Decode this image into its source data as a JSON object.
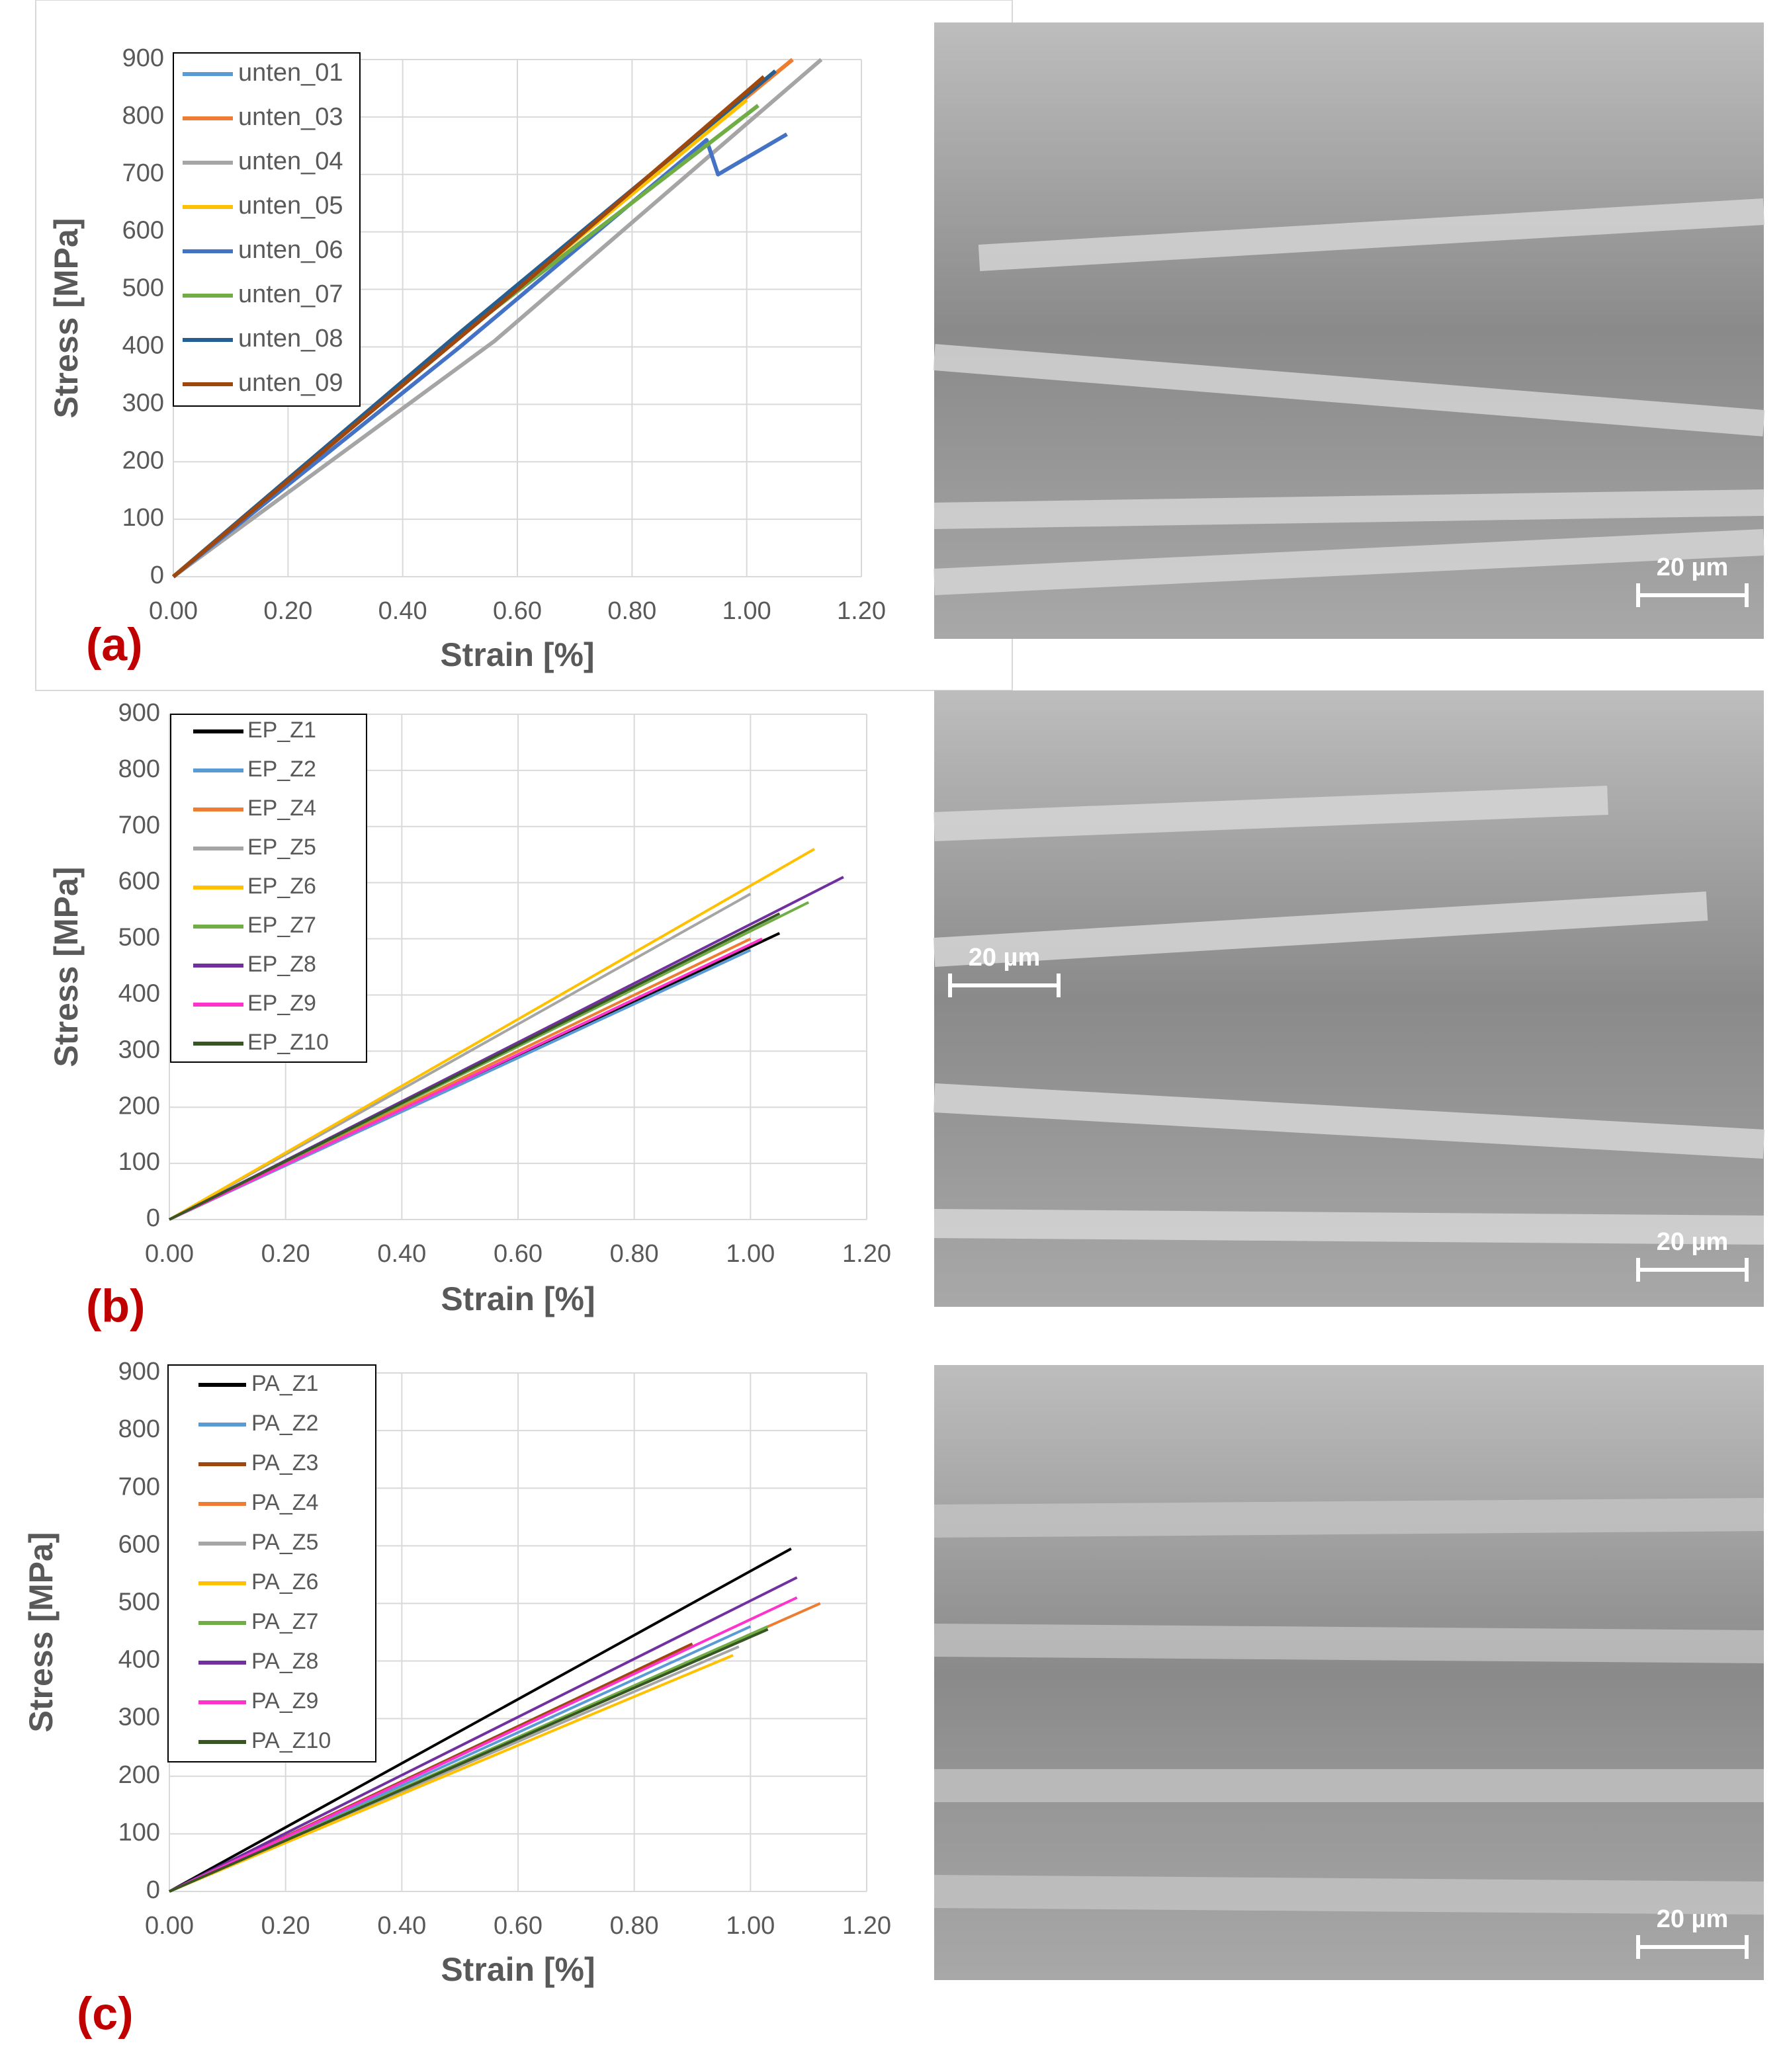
{
  "chart_data": [
    {
      "type": "line",
      "panel_label": "(a)",
      "x_label": "Strain [%]",
      "y_label": "Stress [MPa]",
      "xlim": [
        0,
        1.2
      ],
      "ylim": [
        0,
        900
      ],
      "xticks": [
        {
          "value": 0,
          "label": "0.00"
        },
        {
          "value": 0.2,
          "label": "0.20"
        },
        {
          "value": 0.4,
          "label": "0.40"
        },
        {
          "value": 0.6,
          "label": "0.60"
        },
        {
          "value": 0.8,
          "label": "0.80"
        },
        {
          "value": 1.0,
          "label": "1.00"
        },
        {
          "value": 1.2,
          "label": "1.20"
        }
      ],
      "yticks": [
        0,
        100,
        200,
        300,
        400,
        500,
        600,
        700,
        800,
        900
      ],
      "grid": true,
      "series": [
        {
          "name": "unten_01",
          "color": "#5b9bd5",
          "x": [
            0,
            0.5,
            1.05
          ],
          "values": [
            0,
            420,
            880
          ]
        },
        {
          "name": "unten_03",
          "color": "#ed7d31",
          "x": [
            0,
            0.5,
            1.08
          ],
          "values": [
            0,
            425,
            900
          ]
        },
        {
          "name": "unten_04",
          "color": "#a5a5a5",
          "x": [
            0,
            0.56,
            1.13
          ],
          "values": [
            0,
            410,
            900
          ]
        },
        {
          "name": "unten_05",
          "color": "#ffc000",
          "x": [
            0,
            0.5,
            1.0
          ],
          "values": [
            0,
            420,
            830
          ]
        },
        {
          "name": "unten_06",
          "color": "#4472c4",
          "x": [
            0,
            0.5,
            0.93,
            0.95,
            1.07
          ],
          "values": [
            0,
            400,
            760,
            700,
            770
          ]
        },
        {
          "name": "unten_07",
          "color": "#70ad47",
          "x": [
            0,
            0.5,
            1.02
          ],
          "values": [
            0,
            420,
            820
          ]
        },
        {
          "name": "unten_08",
          "color": "#255e91",
          "x": [
            0,
            0.5,
            1.05
          ],
          "values": [
            0,
            425,
            880
          ]
        },
        {
          "name": "unten_09",
          "color": "#9e480e",
          "x": [
            0,
            0.6,
            1.03
          ],
          "values": [
            0,
            500,
            870
          ]
        }
      ]
    },
    {
      "type": "line",
      "panel_label": "(b)",
      "x_label": "Strain [%]",
      "y_label": "Stress [MPa]",
      "xlim": [
        0,
        1.2
      ],
      "ylim": [
        0,
        900
      ],
      "xticks": [
        {
          "value": 0,
          "label": "0.00"
        },
        {
          "value": 0.2,
          "label": "0.20"
        },
        {
          "value": 0.4,
          "label": "0.40"
        },
        {
          "value": 0.6,
          "label": "0.60"
        },
        {
          "value": 0.8,
          "label": "0.80"
        },
        {
          "value": 1.0,
          "label": "1.00"
        },
        {
          "value": 1.2,
          "label": "1.20"
        }
      ],
      "yticks": [
        0,
        100,
        200,
        300,
        400,
        500,
        600,
        700,
        800,
        900
      ],
      "grid": true,
      "series": [
        {
          "name": "EP_Z1",
          "color": "#000000",
          "x": [
            0,
            1.05
          ],
          "values": [
            0,
            510
          ]
        },
        {
          "name": "EP_Z2",
          "color": "#5b9bd5",
          "x": [
            0,
            1.0
          ],
          "values": [
            0,
            480
          ]
        },
        {
          "name": "EP_Z4",
          "color": "#ed7d31",
          "x": [
            0,
            1.0
          ],
          "values": [
            0,
            500
          ]
        },
        {
          "name": "EP_Z5",
          "color": "#a5a5a5",
          "x": [
            0,
            1.0
          ],
          "values": [
            0,
            580
          ]
        },
        {
          "name": "EP_Z6",
          "color": "#ffc000",
          "x": [
            0,
            1.11
          ],
          "values": [
            0,
            660
          ]
        },
        {
          "name": "EP_Z7",
          "color": "#70ad47",
          "x": [
            0,
            1.1
          ],
          "values": [
            0,
            565
          ]
        },
        {
          "name": "EP_Z8",
          "color": "#7030a0",
          "x": [
            0,
            1.16
          ],
          "values": [
            0,
            610
          ]
        },
        {
          "name": "EP_Z9",
          "color": "#ff33cc",
          "x": [
            0,
            1.02
          ],
          "values": [
            0,
            500
          ]
        },
        {
          "name": "EP_Z10",
          "color": "#375623",
          "x": [
            0,
            1.05
          ],
          "values": [
            0,
            545
          ]
        }
      ]
    },
    {
      "type": "line",
      "panel_label": "(c)",
      "x_label": "Strain [%]",
      "y_label": "Stress [MPa]",
      "xlim": [
        0,
        1.2
      ],
      "ylim": [
        0,
        900
      ],
      "xticks": [
        {
          "value": 0,
          "label": "0.00"
        },
        {
          "value": 0.2,
          "label": "0.20"
        },
        {
          "value": 0.4,
          "label": "0.40"
        },
        {
          "value": 0.6,
          "label": "0.60"
        },
        {
          "value": 0.8,
          "label": "0.80"
        },
        {
          "value": 1.0,
          "label": "1.00"
        },
        {
          "value": 1.2,
          "label": "1.20"
        }
      ],
      "yticks": [
        0,
        100,
        200,
        300,
        400,
        500,
        600,
        700,
        800,
        900
      ],
      "grid": true,
      "series": [
        {
          "name": "PA_Z1",
          "color": "#000000",
          "x": [
            0,
            1.07
          ],
          "values": [
            0,
            595
          ]
        },
        {
          "name": "PA_Z2",
          "color": "#5b9bd5",
          "x": [
            0,
            1.0
          ],
          "values": [
            0,
            460
          ]
        },
        {
          "name": "PA_Z3",
          "color": "#9e480e",
          "x": [
            0,
            0.9
          ],
          "values": [
            0,
            430
          ]
        },
        {
          "name": "PA_Z4",
          "color": "#ed7d31",
          "x": [
            0,
            1.12
          ],
          "values": [
            0,
            500
          ]
        },
        {
          "name": "PA_Z5",
          "color": "#a5a5a5",
          "x": [
            0,
            0.98
          ],
          "values": [
            0,
            425
          ]
        },
        {
          "name": "PA_Z6",
          "color": "#ffc000",
          "x": [
            0,
            0.97
          ],
          "values": [
            0,
            410
          ]
        },
        {
          "name": "PA_Z7",
          "color": "#70ad47",
          "x": [
            0,
            1.03
          ],
          "values": [
            0,
            460
          ]
        },
        {
          "name": "PA_Z8",
          "color": "#7030a0",
          "x": [
            0,
            1.08
          ],
          "values": [
            0,
            545
          ]
        },
        {
          "name": "PA_Z9",
          "color": "#ff33cc",
          "x": [
            0,
            1.08
          ],
          "values": [
            0,
            510
          ]
        },
        {
          "name": "PA_Z10",
          "color": "#375623",
          "x": [
            0,
            1.03
          ],
          "values": [
            0,
            455
          ]
        }
      ]
    }
  ],
  "micrographs": [
    {
      "scale_labels": [
        "20 µm"
      ]
    },
    {
      "scale_labels": [
        "20 µm",
        "20 µm"
      ]
    },
    {
      "scale_labels": [
        "20 µm"
      ]
    }
  ]
}
